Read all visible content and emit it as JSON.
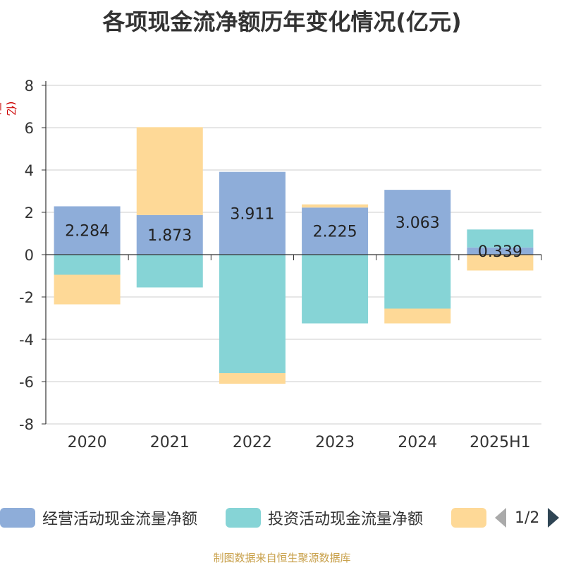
{
  "title": "各项现金流净额历年变化情况(亿元)",
  "y_unit_label": "(亿元)",
  "source_text": "制图数据来自恒生聚源数据库",
  "legend": {
    "items": [
      {
        "label": "经营活动现金流量净额",
        "color": "#8eadd9"
      },
      {
        "label": "投资活动现金流量净额",
        "color": "#86d4d6"
      },
      {
        "label": "",
        "color": "#fed997"
      }
    ],
    "pager": "1/2"
  },
  "chart_data": {
    "type": "bar",
    "stacked": true,
    "categories": [
      "2020",
      "2021",
      "2022",
      "2023",
      "2024",
      "2025H1"
    ],
    "ylim": [
      -8,
      8
    ],
    "yticks": [
      -8,
      -6,
      -4,
      -2,
      0,
      2,
      4,
      6,
      8
    ],
    "grid": true,
    "series": [
      {
        "name": "经营活动现金流量净额",
        "color": "#8eadd9",
        "values": [
          2.284,
          1.873,
          3.911,
          2.225,
          3.063,
          0.339
        ],
        "labels": [
          "2.284",
          "1.873",
          "3.911",
          "2.225",
          "3.063",
          "0.339"
        ]
      },
      {
        "name": "投资活动现金流量净额",
        "color": "#86d4d6",
        "values": [
          -0.95,
          -1.55,
          -5.6,
          -3.25,
          -2.55,
          0.85
        ]
      },
      {
        "color": "#fed997",
        "values": [
          -1.4,
          4.15,
          -0.5,
          0.15,
          -0.7,
          -0.75
        ]
      }
    ]
  }
}
